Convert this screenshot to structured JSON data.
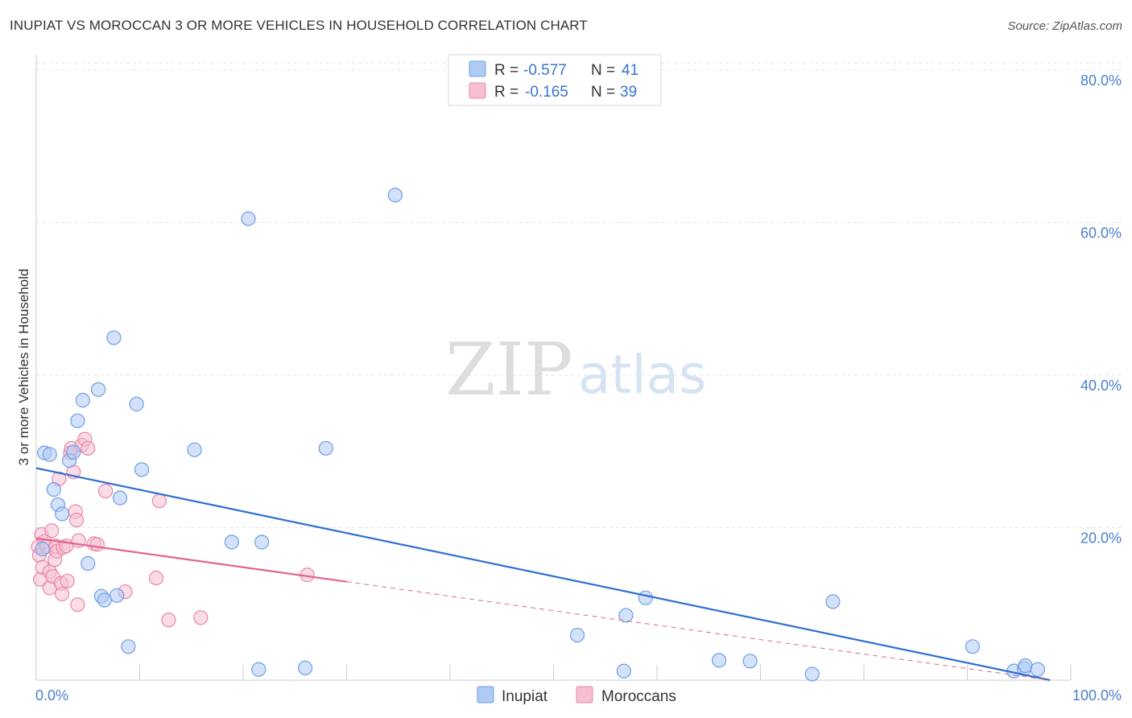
{
  "title": "INUPIAT VS MOROCCAN 3 OR MORE VEHICLES IN HOUSEHOLD CORRELATION CHART",
  "source": "Source: ZipAtlas.com",
  "watermark": {
    "zip": "ZIP",
    "atlas": "atlas"
  },
  "colors": {
    "inupiat_fill": "#aecbf3",
    "inupiat_stroke": "#6f9ee6",
    "inupiat_line": "#2e6fd3",
    "moroccan_fill": "#f6c0d2",
    "moroccan_stroke": "#e987a8",
    "moroccan_line": "#e06592",
    "tick_text": "#4a7fd0",
    "grid": "#e3e3e3"
  },
  "legend": {
    "rows": [
      {
        "r_label": "R =",
        "r_value": "-0.577",
        "n_label": "N =",
        "n_value": "41"
      },
      {
        "r_label": "R =",
        "r_value": "-0.165",
        "n_label": "N =",
        "n_value": "39"
      }
    ]
  },
  "bottom_legend": [
    "Inupiat",
    "Moroccans"
  ],
  "chart_data": {
    "type": "scatter",
    "title": "INUPIAT VS MOROCCAN 3 OR MORE VEHICLES IN HOUSEHOLD CORRELATION CHART",
    "xlabel": "",
    "ylabel": "3 or more Vehicles in Household",
    "xlim": [
      0,
      100
    ],
    "ylim": [
      0,
      82
    ],
    "x_tick_labels": [
      "0.0%",
      "100.0%"
    ],
    "y_ticks": [
      20,
      40,
      60,
      80
    ],
    "y_tick_labels": [
      "20.0%",
      "40.0%",
      "60.0%",
      "80.0%"
    ],
    "grid": true,
    "series": [
      {
        "name": "Inupiat",
        "R": -0.577,
        "N": 41,
        "trend": {
          "x0": 0,
          "y0": 27.8,
          "x1": 98,
          "y1": 0.0,
          "solid_to": 98
        },
        "points": [
          [
            0.6,
            17.2
          ],
          [
            0.8,
            29.8
          ],
          [
            1.3,
            29.6
          ],
          [
            1.7,
            25.0
          ],
          [
            2.1,
            23.0
          ],
          [
            2.5,
            21.8
          ],
          [
            3.2,
            28.8
          ],
          [
            3.6,
            29.9
          ],
          [
            4.0,
            34.0
          ],
          [
            4.5,
            36.7
          ],
          [
            5.0,
            15.3
          ],
          [
            6.0,
            38.1
          ],
          [
            6.3,
            11.0
          ],
          [
            6.6,
            10.5
          ],
          [
            7.5,
            44.9
          ],
          [
            7.8,
            11.1
          ],
          [
            8.1,
            23.9
          ],
          [
            8.9,
            4.4
          ],
          [
            9.7,
            36.2
          ],
          [
            10.2,
            27.6
          ],
          [
            15.3,
            30.2
          ],
          [
            18.9,
            18.1
          ],
          [
            20.5,
            60.5
          ],
          [
            21.5,
            1.4
          ],
          [
            21.8,
            18.1
          ],
          [
            26.0,
            1.6
          ],
          [
            28.0,
            30.4
          ],
          [
            34.7,
            63.6
          ],
          [
            52.3,
            5.9
          ],
          [
            56.8,
            1.2
          ],
          [
            57.0,
            8.5
          ],
          [
            58.9,
            10.8
          ],
          [
            66.0,
            2.6
          ],
          [
            69.0,
            2.5
          ],
          [
            75.0,
            0.8
          ],
          [
            77.0,
            10.3
          ],
          [
            90.5,
            4.4
          ],
          [
            94.5,
            1.2
          ],
          [
            95.5,
            1.5
          ],
          [
            95.6,
            1.9
          ],
          [
            96.8,
            1.4
          ]
        ]
      },
      {
        "name": "Moroccans",
        "R": -0.165,
        "N": 39,
        "trend": {
          "x0": 0,
          "y0": 18.6,
          "x1": 98,
          "y1": 0.0,
          "solid_to": 30
        },
        "points": [
          [
            0.2,
            17.5
          ],
          [
            0.3,
            16.4
          ],
          [
            0.4,
            13.2
          ],
          [
            0.5,
            19.1
          ],
          [
            0.6,
            14.8
          ],
          [
            0.8,
            18.2
          ],
          [
            1.0,
            17.5
          ],
          [
            1.3,
            14.2
          ],
          [
            1.3,
            12.1
          ],
          [
            1.5,
            19.6
          ],
          [
            1.6,
            13.6
          ],
          [
            1.8,
            15.8
          ],
          [
            1.9,
            17.6
          ],
          [
            2.0,
            16.9
          ],
          [
            2.2,
            26.4
          ],
          [
            2.4,
            12.7
          ],
          [
            2.5,
            11.3
          ],
          [
            2.6,
            17.4
          ],
          [
            2.9,
            17.6
          ],
          [
            3.0,
            13.0
          ],
          [
            3.3,
            29.8
          ],
          [
            3.4,
            30.4
          ],
          [
            3.6,
            27.3
          ],
          [
            3.8,
            22.1
          ],
          [
            3.9,
            21.0
          ],
          [
            4.0,
            9.9
          ],
          [
            4.1,
            18.3
          ],
          [
            4.4,
            30.8
          ],
          [
            4.7,
            31.6
          ],
          [
            5.0,
            30.4
          ],
          [
            5.6,
            17.9
          ],
          [
            5.9,
            17.8
          ],
          [
            6.7,
            24.8
          ],
          [
            8.6,
            11.6
          ],
          [
            11.6,
            13.4
          ],
          [
            11.9,
            23.5
          ],
          [
            12.8,
            7.9
          ],
          [
            15.9,
            8.2
          ],
          [
            26.2,
            13.8
          ]
        ]
      }
    ]
  }
}
